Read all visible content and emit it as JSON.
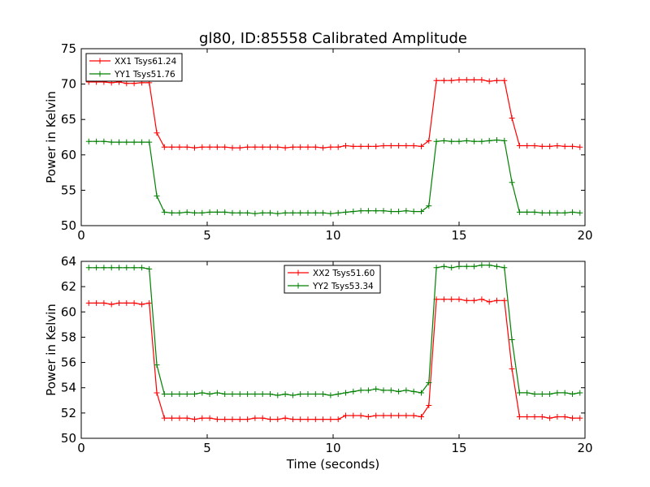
{
  "figure": {
    "title": "gl80, ID:85558 Calibrated Amplitude"
  },
  "chart_data": [
    {
      "type": "line",
      "title": "gl80, ID:85558 Calibrated Amplitude",
      "xlabel": "",
      "ylabel": "Power in Kelvin",
      "xlim": [
        0,
        20
      ],
      "ylim": [
        50,
        75
      ],
      "xticks": [
        0,
        5,
        10,
        15,
        20
      ],
      "yticks": [
        50,
        55,
        60,
        65,
        70,
        75
      ],
      "grid": false,
      "legend_position": "top-left",
      "x": [
        0.3,
        0.6,
        0.9,
        1.2,
        1.5,
        1.8,
        2.1,
        2.4,
        2.7,
        3.0,
        3.3,
        3.6,
        3.9,
        4.2,
        4.5,
        4.8,
        5.1,
        5.4,
        5.7,
        6.0,
        6.3,
        6.6,
        6.9,
        7.2,
        7.5,
        7.8,
        8.1,
        8.4,
        8.7,
        9.0,
        9.3,
        9.6,
        9.9,
        10.2,
        10.5,
        10.8,
        11.1,
        11.4,
        11.7,
        12.0,
        12.3,
        12.6,
        12.9,
        13.2,
        13.5,
        13.8,
        14.1,
        14.4,
        14.7,
        15.0,
        15.3,
        15.6,
        15.9,
        16.2,
        16.5,
        16.8,
        17.1,
        17.4,
        17.7,
        18.0,
        18.3,
        18.6,
        18.9,
        19.2,
        19.5,
        19.8
      ],
      "series": [
        {
          "name": "XX1 Tsys61.24",
          "color": "#ff0000",
          "values": [
            70.3,
            70.3,
            70.3,
            70.2,
            70.3,
            70.1,
            70.1,
            70.2,
            70.2,
            63.1,
            61.1,
            61.1,
            61.1,
            61.1,
            61.0,
            61.1,
            61.1,
            61.1,
            61.1,
            61.0,
            61.0,
            61.1,
            61.1,
            61.1,
            61.1,
            61.1,
            61.0,
            61.1,
            61.1,
            61.1,
            61.1,
            61.0,
            61.1,
            61.1,
            61.3,
            61.2,
            61.2,
            61.2,
            61.2,
            61.3,
            61.3,
            61.3,
            61.3,
            61.3,
            61.2,
            62.0,
            70.5,
            70.5,
            70.5,
            70.6,
            70.6,
            70.6,
            70.6,
            70.4,
            70.5,
            70.5,
            65.2,
            61.3,
            61.3,
            61.3,
            61.2,
            61.2,
            61.3,
            61.2,
            61.2,
            61.1
          ]
        },
        {
          "name": "YY1 Tsys51.76",
          "color": "#008000",
          "values": [
            61.9,
            61.9,
            61.9,
            61.8,
            61.8,
            61.8,
            61.8,
            61.8,
            61.8,
            54.2,
            51.9,
            51.8,
            51.8,
            51.9,
            51.8,
            51.8,
            51.9,
            51.9,
            51.9,
            51.8,
            51.8,
            51.8,
            51.7,
            51.8,
            51.8,
            51.7,
            51.8,
            51.8,
            51.8,
            51.8,
            51.8,
            51.8,
            51.7,
            51.8,
            51.9,
            52.0,
            52.1,
            52.1,
            52.1,
            52.1,
            52.0,
            52.0,
            52.1,
            52.0,
            52.0,
            52.8,
            61.9,
            62.0,
            61.9,
            61.9,
            62.0,
            61.9,
            61.9,
            62.0,
            62.1,
            62.0,
            56.1,
            51.9,
            51.9,
            51.9,
            51.8,
            51.8,
            51.8,
            51.8,
            51.9,
            51.8
          ]
        }
      ]
    },
    {
      "type": "line",
      "title": "",
      "xlabel": "Time (seconds)",
      "ylabel": "Power in Kelvin",
      "xlim": [
        0,
        20
      ],
      "ylim": [
        50,
        64
      ],
      "xticks": [
        0,
        5,
        10,
        15,
        20
      ],
      "yticks": [
        50,
        52,
        54,
        56,
        58,
        60,
        62,
        64
      ],
      "grid": false,
      "legend_position": "top-center",
      "x": [
        0.3,
        0.6,
        0.9,
        1.2,
        1.5,
        1.8,
        2.1,
        2.4,
        2.7,
        3.0,
        3.3,
        3.6,
        3.9,
        4.2,
        4.5,
        4.8,
        5.1,
        5.4,
        5.7,
        6.0,
        6.3,
        6.6,
        6.9,
        7.2,
        7.5,
        7.8,
        8.1,
        8.4,
        8.7,
        9.0,
        9.3,
        9.6,
        9.9,
        10.2,
        10.5,
        10.8,
        11.1,
        11.4,
        11.7,
        12.0,
        12.3,
        12.6,
        12.9,
        13.2,
        13.5,
        13.8,
        14.1,
        14.4,
        14.7,
        15.0,
        15.3,
        15.6,
        15.9,
        16.2,
        16.5,
        16.8,
        17.1,
        17.4,
        17.7,
        18.0,
        18.3,
        18.6,
        18.9,
        19.2,
        19.5,
        19.8
      ],
      "series": [
        {
          "name": "XX2 Tsys51.60",
          "color": "#ff0000",
          "values": [
            60.7,
            60.7,
            60.7,
            60.6,
            60.7,
            60.7,
            60.7,
            60.6,
            60.7,
            53.6,
            51.6,
            51.6,
            51.6,
            51.6,
            51.5,
            51.6,
            51.6,
            51.5,
            51.5,
            51.5,
            51.5,
            51.5,
            51.6,
            51.6,
            51.5,
            51.5,
            51.6,
            51.5,
            51.5,
            51.5,
            51.5,
            51.5,
            51.5,
            51.5,
            51.8,
            51.8,
            51.8,
            51.7,
            51.8,
            51.8,
            51.8,
            51.8,
            51.8,
            51.8,
            51.7,
            52.6,
            61.0,
            61.0,
            61.0,
            61.0,
            60.9,
            60.9,
            61.0,
            60.8,
            60.9,
            60.9,
            55.5,
            51.7,
            51.7,
            51.7,
            51.7,
            51.6,
            51.7,
            51.7,
            51.6,
            51.6
          ]
        },
        {
          "name": "YY2 Tsys53.34",
          "color": "#008000",
          "values": [
            63.5,
            63.5,
            63.5,
            63.5,
            63.5,
            63.5,
            63.5,
            63.5,
            63.4,
            55.8,
            53.5,
            53.5,
            53.5,
            53.5,
            53.5,
            53.6,
            53.5,
            53.6,
            53.5,
            53.5,
            53.5,
            53.5,
            53.5,
            53.5,
            53.5,
            53.4,
            53.5,
            53.4,
            53.5,
            53.5,
            53.5,
            53.5,
            53.4,
            53.5,
            53.6,
            53.7,
            53.8,
            53.8,
            53.9,
            53.8,
            53.8,
            53.7,
            53.8,
            53.7,
            53.6,
            54.4,
            63.5,
            63.6,
            63.5,
            63.6,
            63.6,
            63.6,
            63.7,
            63.7,
            63.6,
            63.5,
            57.8,
            53.6,
            53.6,
            53.5,
            53.5,
            53.5,
            53.6,
            53.6,
            53.5,
            53.6
          ]
        }
      ]
    }
  ]
}
